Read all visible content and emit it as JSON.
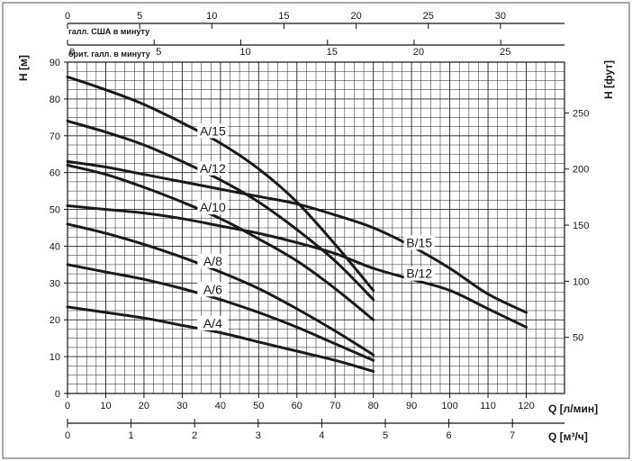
{
  "chart_data": {
    "type": "line",
    "x_units_label": "Q [л/мин]",
    "x2_units_label": "Q [м³/ч]",
    "y_label": "H [м]",
    "y2_label": "H [фут]",
    "top_axis_us_label": "галл. США в минуту",
    "top_axis_uk_label": "брит. галл. в минуту",
    "xlim": [
      0,
      130
    ],
    "ylim": [
      0,
      90
    ],
    "x_ticks": [
      0,
      10,
      20,
      30,
      40,
      50,
      60,
      70,
      80,
      90,
      100,
      110,
      120
    ],
    "y_ticks": [
      0,
      10,
      20,
      30,
      40,
      50,
      60,
      70,
      80,
      90
    ],
    "m3h_ticks": [
      0,
      1,
      2,
      3,
      4,
      5,
      6,
      7
    ],
    "ft_ticks": [
      50,
      100,
      150,
      200,
      250
    ],
    "us_gpm_ticks": [
      0,
      5,
      10,
      15,
      20,
      25,
      30
    ],
    "uk_gpm_ticks": [
      0,
      5,
      10,
      15,
      20,
      25
    ],
    "grid": true,
    "series": [
      {
        "name": "A/15",
        "x": [
          0,
          10,
          20,
          30,
          40,
          50,
          60,
          70,
          80
        ],
        "y": [
          86,
          82.5,
          78.5,
          73.5,
          68,
          61,
          52,
          40.5,
          28
        ]
      },
      {
        "name": "A/12",
        "x": [
          0,
          10,
          20,
          30,
          40,
          50,
          60,
          70,
          80
        ],
        "y": [
          74,
          71,
          67.5,
          63,
          58,
          52,
          44.5,
          36,
          25.5
        ]
      },
      {
        "name": "A/10",
        "x": [
          0,
          10,
          20,
          30,
          40,
          50,
          60,
          70,
          80
        ],
        "y": [
          62,
          59.5,
          56,
          52,
          47.5,
          42,
          36,
          28.5,
          20
        ]
      },
      {
        "name": "A/8",
        "x": [
          0,
          10,
          20,
          30,
          40,
          50,
          60,
          70,
          80
        ],
        "y": [
          46,
          43.5,
          40.5,
          37,
          33,
          28.5,
          23,
          17,
          10.5
        ]
      },
      {
        "name": "A/6",
        "x": [
          0,
          10,
          20,
          30,
          40,
          50,
          60,
          70,
          80
        ],
        "y": [
          35,
          33,
          31,
          28.5,
          25.5,
          22,
          18,
          13.5,
          9
        ]
      },
      {
        "name": "A/4",
        "x": [
          0,
          10,
          20,
          30,
          40,
          50,
          60,
          70,
          80
        ],
        "y": [
          23.5,
          22,
          20.5,
          18.5,
          16.5,
          14,
          11.5,
          9,
          6
        ]
      },
      {
        "name": "B/15",
        "x": [
          0,
          10,
          20,
          30,
          40,
          50,
          60,
          70,
          80,
          90,
          100,
          110,
          120
        ],
        "y": [
          63,
          61.5,
          59.5,
          57.5,
          55.5,
          53.5,
          51.5,
          48.5,
          45,
          40,
          34,
          27,
          22
        ]
      },
      {
        "name": "B/12",
        "x": [
          0,
          10,
          20,
          30,
          40,
          50,
          60,
          70,
          80,
          90,
          100,
          110,
          120
        ],
        "y": [
          51,
          50,
          49,
          47.5,
          45.5,
          43.5,
          41,
          38,
          34,
          31,
          28,
          23,
          18
        ]
      }
    ]
  }
}
